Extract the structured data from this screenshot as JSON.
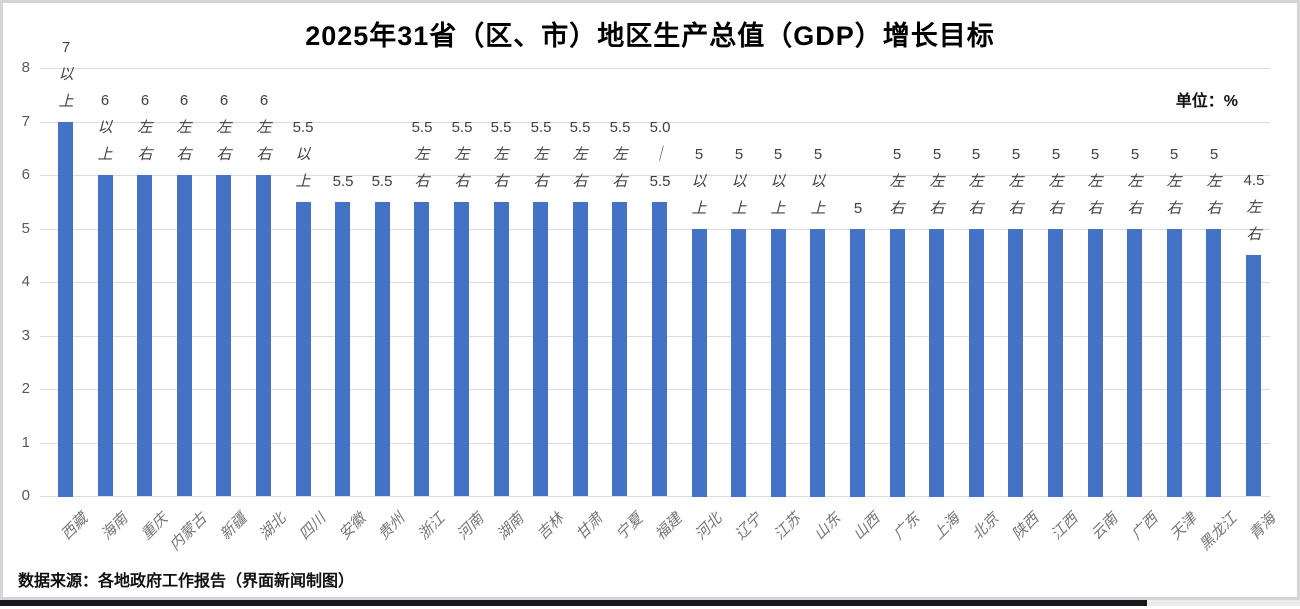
{
  "header": {
    "title": "2025年31省（区、市）地区生产总值（GDP）增长目标",
    "unit_label": "单位：%"
  },
  "footer": {
    "source": "数据来源：各地政府工作报告（界面新闻制图）"
  },
  "colors": {
    "bar": "#4472c4",
    "gridline": "#dcdcdc",
    "axis_text": "#595959",
    "data_label_text": "#404040",
    "category_text": "#767676",
    "frame_border": "#d5d5d5",
    "bottom_strip": "#16181d"
  },
  "chart_data": {
    "type": "bar",
    "title": "2025年31省（区、市）地区生产总值（GDP）增长目标",
    "xlabel": "",
    "ylabel": "单位：%",
    "ylim": [
      0,
      8
    ],
    "yticks": [
      0,
      1,
      2,
      3,
      4,
      5,
      6,
      7,
      8
    ],
    "grid": true,
    "legend": false,
    "categories": [
      "西藏",
      "海南",
      "重庆",
      "内蒙古",
      "新疆",
      "湖北",
      "四川",
      "安徽",
      "贵州",
      "浙江",
      "河南",
      "湖南",
      "吉林",
      "甘肃",
      "宁夏",
      "福建",
      "河北",
      "辽宁",
      "江苏",
      "山东",
      "山西",
      "广东",
      "上海",
      "北京",
      "陕西",
      "江西",
      "云南",
      "广西",
      "天津",
      "黑龙江",
      "青海"
    ],
    "values": [
      7,
      6,
      6,
      6,
      6,
      6,
      5.5,
      5.5,
      5.5,
      5.5,
      5.5,
      5.5,
      5.5,
      5.5,
      5.5,
      5.5,
      5,
      5,
      5,
      5,
      5,
      5,
      5,
      5,
      5,
      5,
      5,
      5,
      5,
      5,
      4.5
    ],
    "bar_labels": [
      [
        "7",
        "以",
        "上"
      ],
      [
        "6",
        "以",
        "上"
      ],
      [
        "6",
        "左",
        "右"
      ],
      [
        "6",
        "左",
        "右"
      ],
      [
        "6",
        "左",
        "右"
      ],
      [
        "6",
        "左",
        "右"
      ],
      [
        "5.5",
        "以",
        "上"
      ],
      [
        "5.5"
      ],
      [
        "5.5"
      ],
      [
        "5.5",
        "左",
        "右"
      ],
      [
        "5.5",
        "左",
        "右"
      ],
      [
        "5.5",
        "左",
        "右"
      ],
      [
        "5.5",
        "左",
        "右"
      ],
      [
        "5.5",
        "左",
        "右"
      ],
      [
        "5.5",
        "左",
        "右"
      ],
      [
        "5.0",
        "｜",
        "5.5"
      ],
      [
        "5",
        "以",
        "上"
      ],
      [
        "5",
        "以",
        "上"
      ],
      [
        "5",
        "以",
        "上"
      ],
      [
        "5",
        "以",
        "上"
      ],
      [
        "5"
      ],
      [
        "5",
        "左",
        "右"
      ],
      [
        "5",
        "左",
        "右"
      ],
      [
        "5",
        "左",
        "右"
      ],
      [
        "5",
        "左",
        "右"
      ],
      [
        "5",
        "左",
        "右"
      ],
      [
        "5",
        "左",
        "右"
      ],
      [
        "5",
        "左",
        "右"
      ],
      [
        "5",
        "左",
        "右"
      ],
      [
        "5",
        "左",
        "右"
      ],
      [
        "4.5",
        "左",
        "右"
      ]
    ]
  }
}
